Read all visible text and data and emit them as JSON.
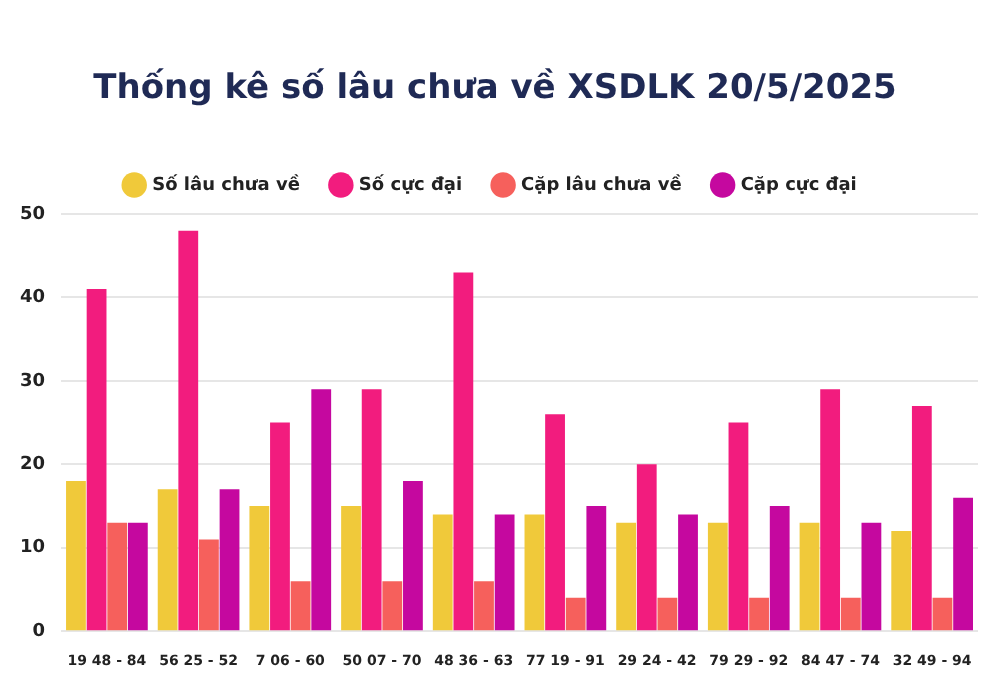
{
  "chart_data": {
    "type": "bar",
    "title": "Thống kê số lâu chưa về XSDLK 20/5/2025",
    "categories": [
      "19 48 - 84",
      "56 25 - 52",
      "7 06 - 60",
      "50 07 - 70",
      "48 36 - 63",
      "77 19 - 91",
      "29 24 - 42",
      "79 29 - 92",
      "84 47 - 74",
      "32 49 - 94"
    ],
    "series": [
      {
        "name": "Số lâu chưa về",
        "color": "#f0c93a",
        "values": [
          18,
          17,
          15,
          15,
          14,
          14,
          13,
          13,
          13,
          12
        ]
      },
      {
        "name": "Số cực đại",
        "color": "#f21c7e",
        "values": [
          41,
          48,
          25,
          29,
          43,
          26,
          20,
          25,
          29,
          27
        ]
      },
      {
        "name": "Cặp lâu chưa về",
        "color": "#f6605c",
        "values": [
          13,
          11,
          6,
          6,
          6,
          4,
          4,
          4,
          4,
          4
        ]
      },
      {
        "name": "Cặp cực đại",
        "color": "#c5089f",
        "values": [
          13,
          17,
          29,
          18,
          14,
          15,
          14,
          15,
          13,
          16
        ]
      }
    ],
    "ylim": [
      0,
      50
    ],
    "yticks": [
      0,
      10,
      20,
      30,
      40,
      50
    ],
    "grid": "y",
    "legend": "top"
  }
}
